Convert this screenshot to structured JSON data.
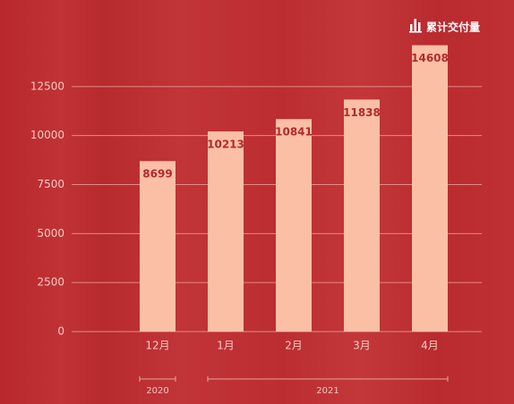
{
  "chart_data": {
    "type": "bar",
    "categories": [
      "12月",
      "1月",
      "2月",
      "3月",
      "4月"
    ],
    "x_groups": [
      "2020",
      "2021"
    ],
    "series": [
      {
        "name": "累计交付量",
        "color": "#fbbfa6",
        "values": [
          8699,
          10213,
          10841,
          11838,
          14608
        ]
      }
    ],
    "ylim": [
      0,
      15000
    ],
    "yticks": [
      0,
      2500,
      5000,
      7500,
      10000,
      12500
    ],
    "grid": true,
    "legend": "top-right",
    "value_label_color": "#b32a2c"
  }
}
